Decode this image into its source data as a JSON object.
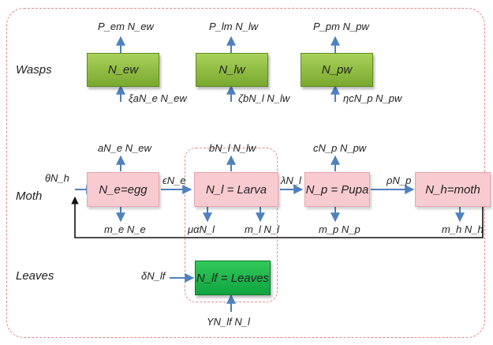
{
  "rows": {
    "wasps": "Wasps",
    "moth": "Moth",
    "leaves": "Leaves"
  },
  "boxes": {
    "n_ew": "N_ew",
    "n_lw": "N_lw",
    "n_pw": "N_pw",
    "n_e": "N_e=egg",
    "n_l": "N_l = Larva",
    "n_p": "N_p = Pupa",
    "n_h": "N_h=moth",
    "n_lf": "N_lf = Leaves"
  },
  "flows": {
    "p_em_n_ew": "P_em N_ew",
    "p_lm_n_lw": "P_lm N_lw",
    "p_pm_n_pw": "P_pm N_pw",
    "xi_a_ne_new": "ξaN_e N_ew",
    "zeta_b_nl_nlw": "ζbN_l N_lw",
    "eta_c_np_npw": "ηcN_p N_pw",
    "a_ne_new": "aN_e N_ew",
    "b_nl_nlw": "bN_l N_lw",
    "c_np_npw": "cN_p N_pw",
    "theta_nh": "θN_h",
    "eps_ne": "ϵN_e",
    "lambda_nl": "λN_l",
    "rho_np": "ρN_p",
    "me_ne": "m_e N_e",
    "mu_alpha_nl": "μαN_l",
    "ml_nl": "m_l N_l",
    "mp_np": "m_p N_p",
    "mh_nh": "m_h N_h",
    "delta_nlf": "δN_lf",
    "gamma_nlf_nl": "YN_lf N_l"
  },
  "colors": {
    "frame": "#e08a8a",
    "wasp_box": "#8dbb3e",
    "moth_box": "#f8cbd0",
    "leaf_box": "#1db94e",
    "arrow": "#4f81bd",
    "feedback_line": "#111111"
  }
}
